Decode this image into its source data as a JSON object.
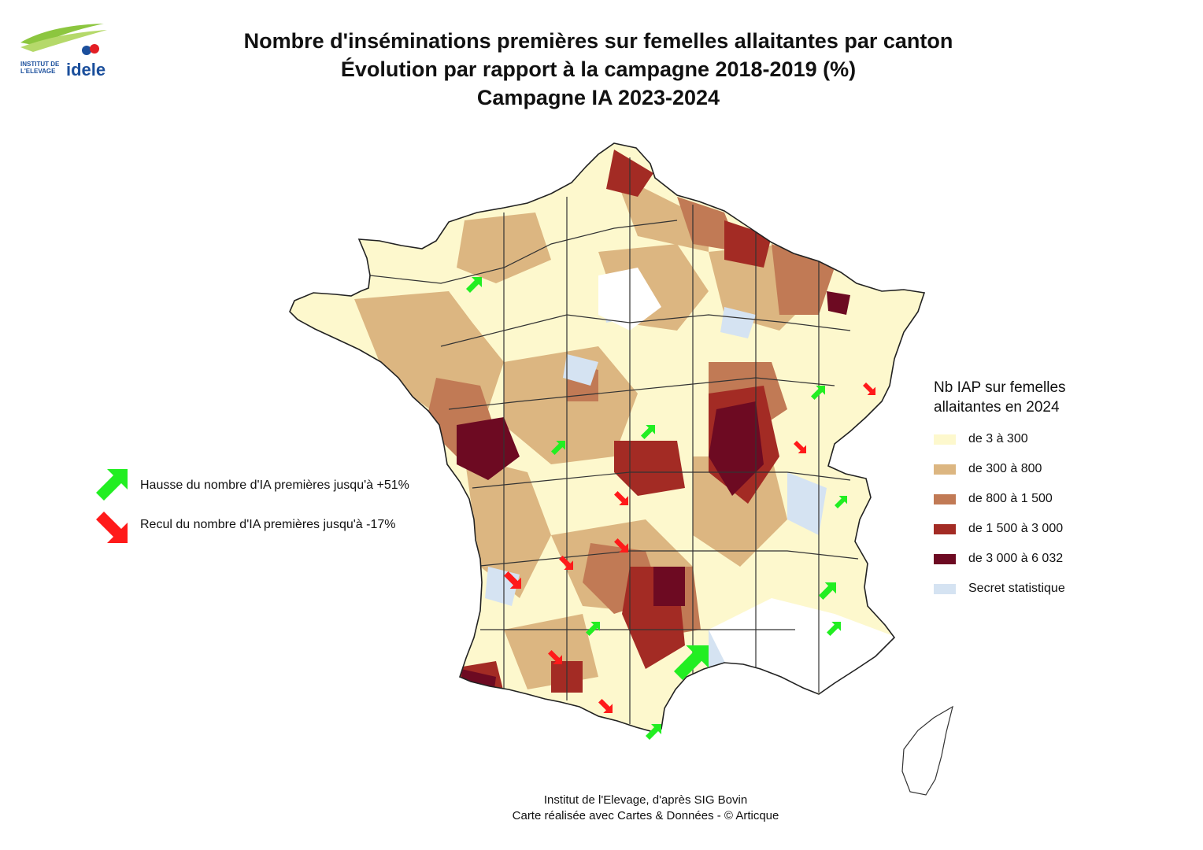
{
  "logo": {
    "line1": "INSTITUT DE",
    "line2": "L'ELEVAGE",
    "brand": "idele",
    "colors": {
      "green": "#8cc63f",
      "blue": "#1b4f9c",
      "red": "#e31e24"
    }
  },
  "title": {
    "line1": "Nombre d'inséminations premières sur femelles allaitantes par canton",
    "line2": "Évolution par rapport à la campagne 2018-2019 (%)",
    "line3": "Campagne IA 2023-2024"
  },
  "arrow_legend": {
    "increase": {
      "label": "Hausse du nombre d'IA premières jusqu'à +51%",
      "color": "#22ee22",
      "icon": "arrow-up-right-icon"
    },
    "decrease": {
      "label": "Recul du nombre d'IA premières jusqu'à -17%",
      "color": "#ff1a1a",
      "icon": "arrow-down-right-icon"
    }
  },
  "legend": {
    "title_line1": "Nb IAP sur femelles",
    "title_line2": "allaitantes en 2024",
    "items": [
      {
        "label": "de 3 à 300",
        "color": "#fdf8cd"
      },
      {
        "label": "de 300 à 800",
        "color": "#dcb681"
      },
      {
        "label": "de 800 à 1 500",
        "color": "#c17a55"
      },
      {
        "label": "de 1 500 à 3 000",
        "color": "#a32b24"
      },
      {
        "label": "de 3 000 à 6 032",
        "color": "#6d0a22"
      },
      {
        "label": "Secret statistique",
        "color": "#d5e3f2"
      }
    ]
  },
  "map": {
    "border_color": "#333333",
    "no_data_color": "#ffffff"
  },
  "source": {
    "line1": "Institut de l'Elevage, d'après SIG Bovin",
    "line2": "Carte réalisée avec Cartes & Données - © Articque"
  }
}
